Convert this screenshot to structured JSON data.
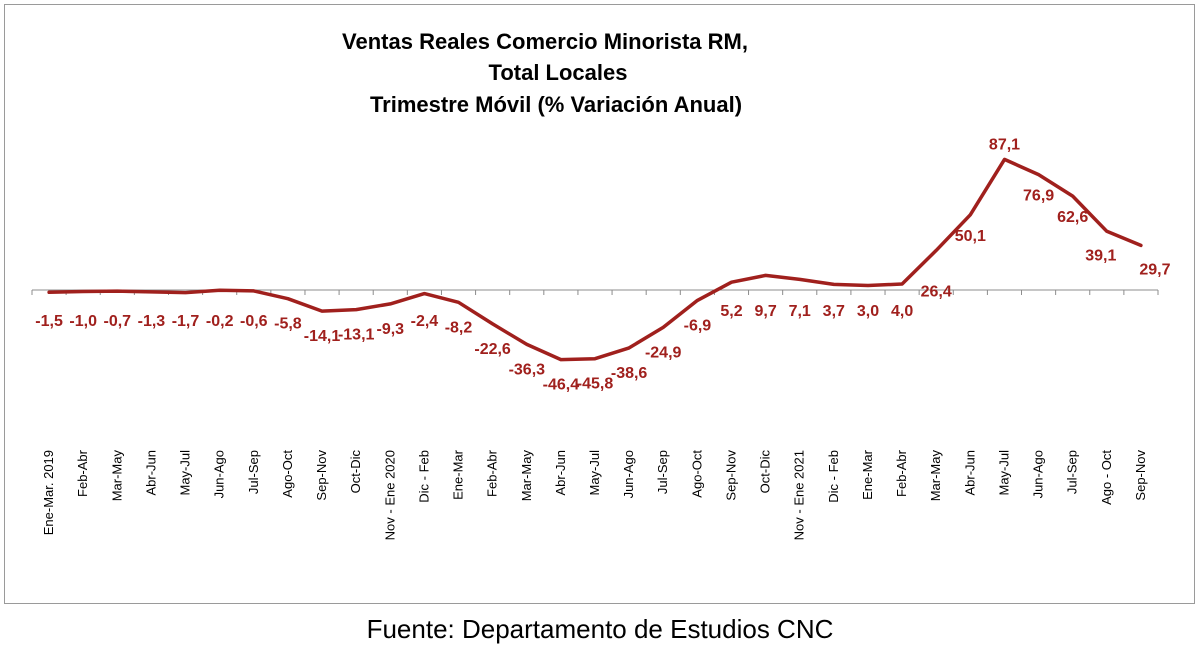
{
  "chart_data": {
    "type": "line",
    "title_lines": [
      "Ventas Reales Comercio Minorista RM,",
      "Total Locales",
      "Trimestre Móvil (% Variación Anual)"
    ],
    "categories": [
      "Ene-Mar. 2019",
      "Feb-Abr",
      "Mar-May",
      "Abr-Jun",
      "May-Jul",
      "Jun-Ago",
      "Jul-Sep",
      "Ago-Oct",
      "Sep-Nov",
      "Oct-Dic",
      "Nov - Ene 2020",
      "Dic - Feb",
      "Ene-Mar",
      "Feb-Abr",
      "Mar-May",
      "Abr-Jun",
      "May-Jul",
      "Jun-Ago",
      "Jul-Sep",
      "Ago-Oct",
      "Sep-Nov",
      "Oct-Dic",
      "Nov - Ene 2021",
      "Dic - Feb",
      "Ene-Mar",
      "Feb-Abr",
      "Mar-May",
      "Abr-Jun",
      "May-Jul",
      "Jun-Ago",
      "Jul-Sep",
      "Ago - Oct",
      "Sep-Nov"
    ],
    "values": [
      -1.5,
      -1.0,
      -0.7,
      -1.3,
      -1.7,
      -0.2,
      -0.6,
      -5.8,
      -14.1,
      -13.1,
      -9.3,
      -2.4,
      -8.2,
      -22.6,
      -36.3,
      -46.4,
      -45.8,
      -38.6,
      -24.9,
      -6.9,
      5.2,
      9.7,
      7.1,
      3.7,
      3.0,
      4.0,
      26.4,
      50.1,
      87.1,
      76.9,
      62.6,
      39.1,
      29.7
    ],
    "data_labels": [
      "-1,5",
      "-1,0",
      "-0,7",
      "-1,3",
      "-1,7",
      "-0,2",
      "-0,6",
      "-5,8",
      "-14,1",
      "-13,1",
      "-9,3",
      "-2,4",
      "-8,2",
      "-22,6",
      "-36,3",
      "-46,4",
      "-45,8",
      "-38,6",
      "-24,9",
      "-6,9",
      "5,2",
      "9,7",
      "7,1",
      "3,7",
      "3,0",
      "4,0",
      "26,4",
      "50,1",
      "87,1",
      "76,9",
      "62,6",
      "39,1",
      "29,7"
    ],
    "series_color": "#a0201d",
    "axis_color": "#8c8c8c",
    "grid": false,
    "legend": "none"
  },
  "source": "Fuente: Departamento de Estudios CNC"
}
